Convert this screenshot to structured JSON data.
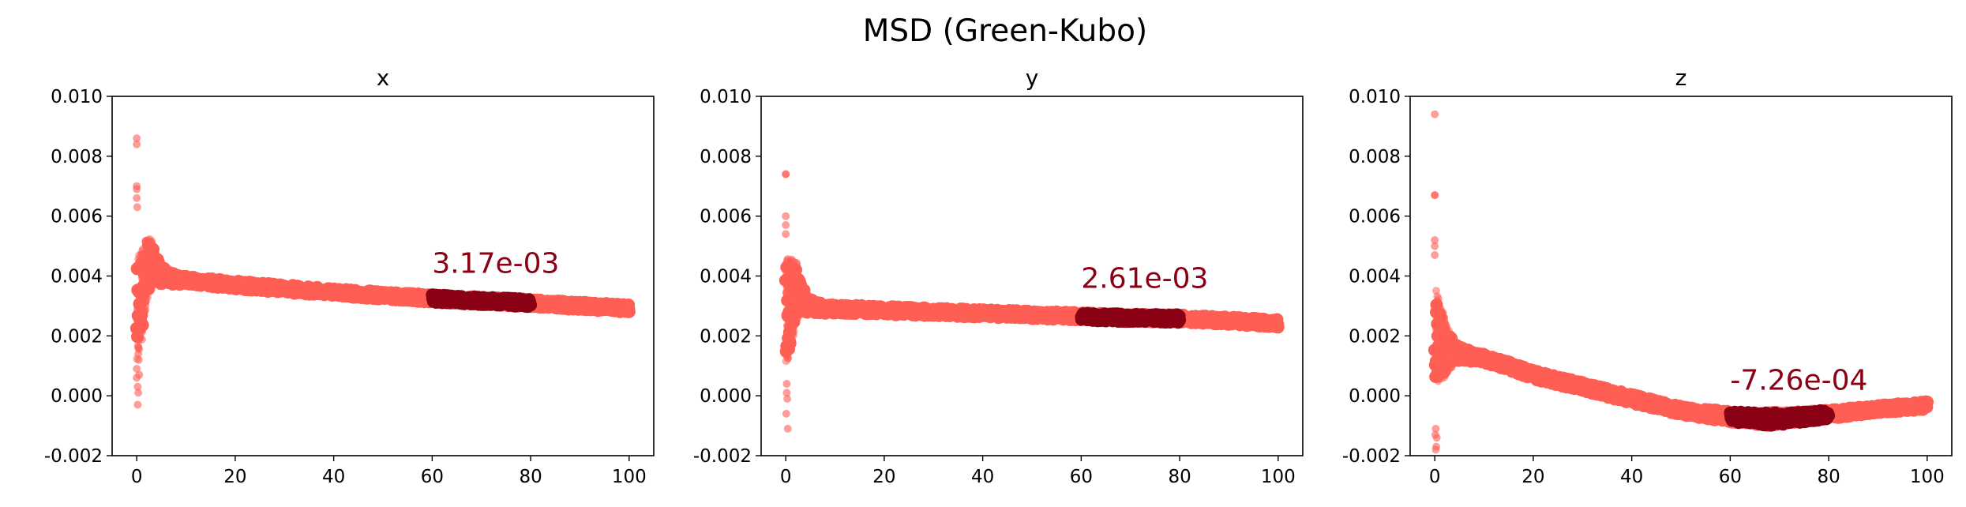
{
  "suptitle": "MSD (Green-Kubo)",
  "colors": {
    "series": "#ff5e55",
    "highlight": "#8a0014",
    "annotation": "#8a0014",
    "axes": "#000000",
    "background": "#ffffff"
  },
  "chart_data": [
    {
      "type": "scatter",
      "title": "x",
      "xlabel": "",
      "ylabel": "",
      "xlim": [
        -5,
        105
      ],
      "ylim": [
        -0.002,
        0.01
      ],
      "xticks": [
        0,
        20,
        40,
        60,
        80,
        100
      ],
      "yticks": [
        -0.002,
        0.0,
        0.002,
        0.004,
        0.006,
        0.008,
        0.01
      ],
      "grid": false,
      "trend": {
        "x": [
          0,
          1,
          2,
          3,
          5,
          8,
          10,
          20,
          30,
          40,
          50,
          60,
          70,
          80,
          90,
          100
        ],
        "y": [
          0.0028,
          0.0033,
          0.0042,
          0.0045,
          0.004,
          0.0039,
          0.00385,
          0.0037,
          0.00358,
          0.00345,
          0.00335,
          0.00325,
          0.00317,
          0.0031,
          0.003,
          0.00292
        ],
        "spread": [
          0.0015,
          0.0013,
          0.0009,
          0.0006,
          0.0003,
          0.00018,
          0.00015,
          0.00014,
          0.00014,
          0.00013,
          0.00013,
          0.00013,
          0.00013,
          0.00013,
          0.00013,
          0.00013
        ]
      },
      "outliers": {
        "x": [
          0,
          0,
          0,
          0,
          0,
          0,
          0,
          0.2,
          0.3,
          0.5,
          0.2,
          0.4,
          0.1,
          0.3
        ],
        "y": [
          0.0086,
          0.0084,
          0.007,
          0.0069,
          0.0066,
          0.0009,
          0.0006,
          0.0003,
          0.0001,
          0.0007,
          -0.0003,
          0.0012,
          0.0063,
          0.0014
        ]
      },
      "highlight_range": [
        60,
        80
      ],
      "annotation": {
        "text": "3.17e-03",
        "x": 60,
        "y": 0.0041
      }
    },
    {
      "type": "scatter",
      "title": "y",
      "xlabel": "",
      "ylabel": "",
      "xlim": [
        -5,
        105
      ],
      "ylim": [
        -0.002,
        0.01
      ],
      "xticks": [
        0,
        20,
        40,
        60,
        80,
        100
      ],
      "yticks": [
        -0.002,
        0.0,
        0.002,
        0.004,
        0.006,
        0.008,
        0.01
      ],
      "grid": false,
      "trend": {
        "x": [
          0,
          1,
          2,
          3,
          5,
          8,
          10,
          20,
          30,
          40,
          50,
          60,
          70,
          80,
          90,
          100
        ],
        "y": [
          0.0028,
          0.003,
          0.0035,
          0.0033,
          0.003,
          0.0029,
          0.0029,
          0.00285,
          0.0028,
          0.00275,
          0.0027,
          0.00265,
          0.0026,
          0.00258,
          0.0025,
          0.00242
        ],
        "spread": [
          0.0016,
          0.0013,
          0.0009,
          0.0005,
          0.00022,
          0.00015,
          0.00014,
          0.00014,
          0.00013,
          0.00013,
          0.00013,
          0.00013,
          0.00013,
          0.00013,
          0.00013,
          0.00013
        ]
      },
      "outliers": {
        "x": [
          0,
          0,
          0,
          0,
          0,
          0.2,
          0.3,
          0.1,
          0.4,
          0.2
        ],
        "y": [
          0.0074,
          0.0074,
          0.006,
          0.0057,
          0.0054,
          0.0001,
          -0.0001,
          -0.0006,
          -0.0011,
          0.0004
        ]
      },
      "highlight_range": [
        60,
        80
      ],
      "annotation": {
        "text": "2.61e-03",
        "x": 60,
        "y": 0.0036
      }
    },
    {
      "type": "scatter",
      "title": "z",
      "xlabel": "",
      "ylabel": "",
      "xlim": [
        -5,
        105
      ],
      "ylim": [
        -0.002,
        0.01
      ],
      "xticks": [
        0,
        20,
        40,
        60,
        80,
        100
      ],
      "yticks": [
        -0.002,
        0.0,
        0.002,
        0.004,
        0.006,
        0.008,
        0.01
      ],
      "grid": false,
      "trend": {
        "x": [
          0,
          1,
          2,
          3,
          5,
          8,
          10,
          15,
          20,
          30,
          40,
          50,
          60,
          68,
          75,
          80,
          90,
          100
        ],
        "y": [
          0.002,
          0.0018,
          0.0016,
          0.0015,
          0.0014,
          0.0013,
          0.00125,
          0.001,
          0.0007,
          0.0003,
          -0.0001,
          -0.0005,
          -0.0007,
          -0.00078,
          -0.0007,
          -0.00062,
          -0.00045,
          -0.00032
        ],
        "spread": [
          0.0015,
          0.0012,
          0.0008,
          0.0005,
          0.00025,
          0.00016,
          0.00015,
          0.00015,
          0.00015,
          0.00015,
          0.00015,
          0.00015,
          0.00018,
          0.00022,
          0.00018,
          0.00015,
          0.00013,
          0.00013
        ]
      },
      "outliers": {
        "x": [
          0,
          0,
          0,
          0,
          0,
          0,
          0.2,
          0.1,
          0.3,
          0.2,
          0.4
        ],
        "y": [
          0.0094,
          0.0067,
          0.0067,
          0.0052,
          0.005,
          0.0047,
          -0.0011,
          -0.0013,
          -0.0017,
          -0.0018,
          -0.0014
        ]
      },
      "highlight_range": [
        60,
        80
      ],
      "annotation": {
        "text": "-7.26e-04",
        "x": 60,
        "y": 0.0002
      }
    }
  ]
}
